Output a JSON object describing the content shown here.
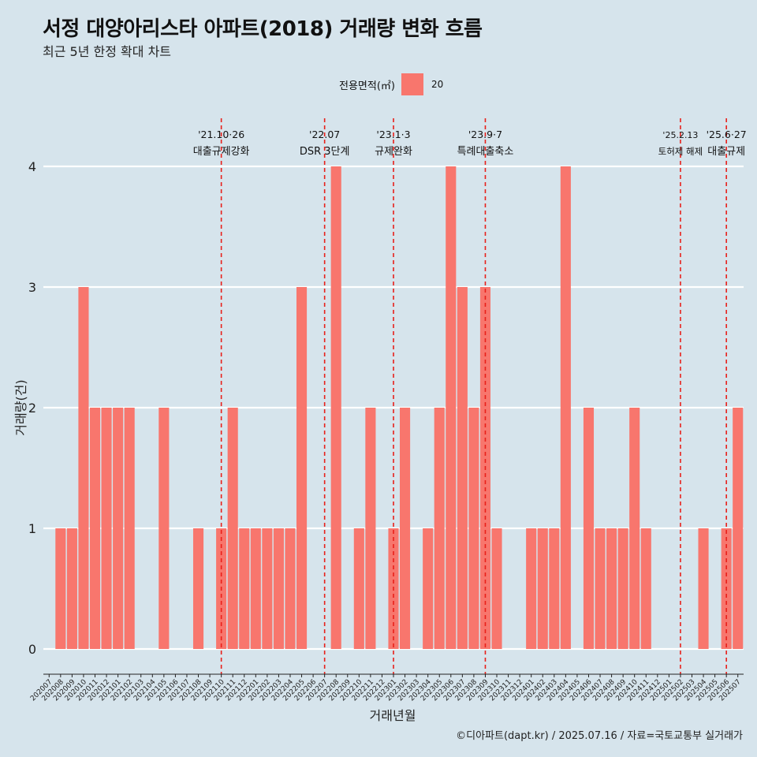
{
  "chart_data": {
    "type": "bar",
    "title": "서정 대양아리스타 아파트(2018) 거래량 변화 흐름",
    "subtitle": "최근 5년 한정 확대 차트",
    "xlabel": "거래년월",
    "ylabel": "거래량(건)",
    "legend_title": "전용면적(㎡)",
    "legend_position": "top",
    "series": [
      {
        "name": "20",
        "color": "#f8766d"
      }
    ],
    "categories": [
      "202007",
      "202008",
      "202009",
      "202010",
      "202011",
      "202012",
      "202101",
      "202102",
      "202103",
      "202104",
      "202105",
      "202106",
      "202107",
      "202108",
      "202109",
      "202110",
      "202111",
      "202112",
      "202201",
      "202202",
      "202203",
      "202204",
      "202205",
      "202206",
      "202207",
      "202208",
      "202209",
      "202210",
      "202211",
      "202212",
      "202301",
      "202302",
      "202303",
      "202304",
      "202305",
      "202306",
      "202307",
      "202308",
      "202309",
      "202310",
      "202311",
      "202312",
      "202401",
      "202402",
      "202403",
      "202404",
      "202405",
      "202406",
      "202407",
      "202408",
      "202409",
      "202410",
      "202411",
      "202412",
      "202501",
      "202502",
      "202503",
      "202504",
      "202505",
      "202506",
      "202507"
    ],
    "values": [
      0,
      1,
      1,
      3,
      2,
      2,
      2,
      2,
      0,
      0,
      2,
      0,
      0,
      1,
      0,
      1,
      2,
      1,
      1,
      1,
      1,
      1,
      3,
      0,
      0,
      4,
      0,
      1,
      2,
      0,
      1,
      2,
      0,
      1,
      2,
      4,
      3,
      2,
      3,
      1,
      0,
      0,
      1,
      1,
      1,
      4,
      0,
      2,
      1,
      1,
      1,
      2,
      1,
      0,
      0,
      0,
      0,
      1,
      0,
      1,
      2
    ],
    "ylim": [
      0,
      4
    ],
    "yticks": [
      0,
      1,
      2,
      3,
      4
    ],
    "grid": true,
    "annotations": [
      {
        "x": "202110",
        "date": "'21.10·26",
        "label": "대출규제강화"
      },
      {
        "x": "202207",
        "date": "'22.07",
        "label": "DSR 3단계"
      },
      {
        "x": "202301",
        "date": "'23.1·3",
        "label": "규제완화"
      },
      {
        "x": "202309",
        "date": "'23.9·7",
        "label": "특례대출축소"
      },
      {
        "x": "202502",
        "date": "'25.2.13",
        "label": "토허제 해제"
      },
      {
        "x": "202506",
        "date": "'25.6·27",
        "label": "대출규제"
      }
    ],
    "caption": "©디아파트(dapt.kr) / 2025.07.16 / 자료=국토교통부 실거래가"
  }
}
